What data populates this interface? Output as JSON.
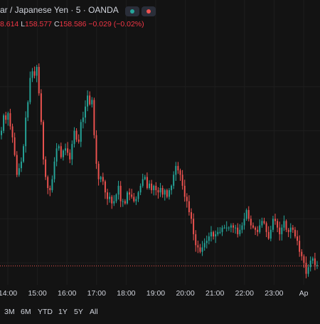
{
  "header": {
    "symbol_title": "ar / Japanese Yen · 5 · OANDA",
    "high_value": "8.614",
    "low_label": "L",
    "low_value": "158.577",
    "close_label": "C",
    "close_value": "158.586",
    "change_value": "−0.029 (−0.02%)",
    "dot_colors": [
      "#26a69a",
      "#ef5350"
    ]
  },
  "chart_data": {
    "type": "candlestick",
    "title": "",
    "x_ticks": [
      "14:00",
      "15:00",
      "16:00",
      "17:00",
      "18:00",
      "19:00",
      "20:00",
      "21:00",
      "22:00",
      "23:00",
      "Ap"
    ],
    "y_range": [
      158.5,
      159.6
    ],
    "current_price": 158.586,
    "up_color": "#26a69a",
    "down_color": "#ef5350",
    "price_line_color": "#ef5350",
    "grid": true,
    "closes": [
      159.2,
      159.27,
      159.25,
      159.28,
      159.22,
      159.17,
      159.09,
      159.0,
      159.03,
      159.06,
      159.13,
      159.26,
      159.33,
      159.44,
      159.47,
      159.45,
      159.49,
      159.37,
      159.24,
      159.07,
      158.99,
      158.94,
      158.93,
      158.98,
      159.06,
      159.12,
      159.13,
      159.08,
      159.11,
      159.12,
      159.1,
      159.07,
      159.14,
      159.2,
      159.16,
      159.15,
      159.24,
      159.26,
      159.31,
      159.36,
      159.32,
      159.34,
      159.18,
      159.05,
      158.98,
      158.99,
      158.97,
      158.92,
      158.89,
      158.9,
      158.87,
      158.88,
      158.91,
      158.95,
      158.88,
      158.88,
      158.87,
      158.92,
      158.91,
      158.9,
      158.88,
      158.89,
      158.92,
      158.95,
      158.98,
      158.99,
      158.94,
      158.96,
      158.93,
      158.95,
      158.93,
      158.92,
      158.94,
      158.91,
      158.93,
      158.9,
      158.93,
      158.95,
      159.0,
      159.04,
      159.02,
      159.0,
      158.95,
      158.9,
      158.88,
      158.83,
      158.8,
      158.73,
      158.68,
      158.67,
      158.65,
      158.67,
      158.69,
      158.7,
      158.72,
      158.74,
      158.72,
      158.73,
      158.74,
      158.74,
      158.76,
      158.76,
      158.76,
      158.76,
      158.77,
      158.76,
      158.76,
      158.73,
      158.75,
      158.77,
      158.8,
      158.84,
      158.8,
      158.77,
      158.76,
      158.75,
      158.74,
      158.77,
      158.79,
      158.78,
      158.74,
      158.71,
      158.75,
      158.8,
      158.79,
      158.76,
      158.73,
      158.76,
      158.79,
      158.75,
      158.74,
      158.76,
      158.75,
      158.72,
      158.7,
      158.65,
      158.63,
      158.6,
      158.55,
      158.58,
      158.61,
      158.62,
      158.59,
      158.59
    ]
  },
  "range_buttons": [
    "3M",
    "6M",
    "YTD",
    "1Y",
    "5Y",
    "All"
  ]
}
